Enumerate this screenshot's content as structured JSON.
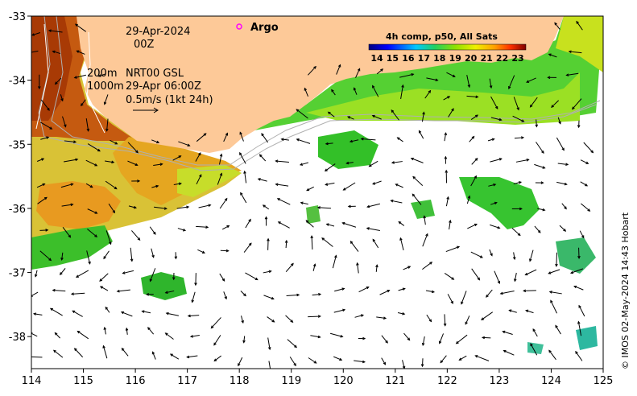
{
  "map": {
    "date_label": "29-Apr-2024",
    "time_label": "00Z",
    "argo_label": "Argo",
    "depth_200": "200m",
    "depth_1000": "1000m",
    "product_label": "NRT00 GSL",
    "product_time": "29-Apr 06:00Z",
    "velocity_scale": "0.5m/s (1kt 24h)",
    "colorbar_title": "4h comp, p50, All Sats",
    "colorbar_ticks": [
      "14",
      "15",
      "16",
      "17",
      "18",
      "19",
      "20",
      "21",
      "22",
      "23"
    ],
    "credit": "© IMOS 02-May-2024 14:43 Hobart",
    "x_ticks": [
      "114",
      "115",
      "116",
      "117",
      "118",
      "119",
      "120",
      "121",
      "122",
      "123",
      "124",
      "125"
    ],
    "y_ticks": [
      "-33",
      "-34",
      "-35",
      "-36",
      "-37",
      "-38"
    ],
    "colors": {
      "land": "#fdc998",
      "argo": "#ff00ff"
    },
    "chart_data": {
      "type": "heatmap",
      "x_range": [
        114,
        125
      ],
      "y_range": [
        -38.5,
        -33
      ],
      "colorbar_range": [
        14,
        23
      ]
    }
  }
}
